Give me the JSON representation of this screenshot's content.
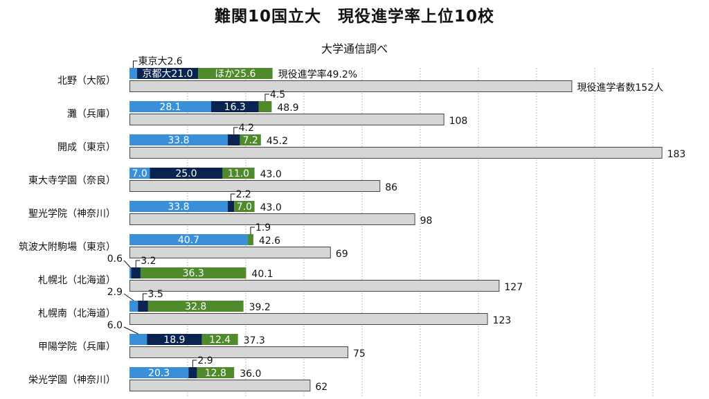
{
  "title": "難関10国立大　現役進学率上位10校",
  "subtitle": "大学通信調べ",
  "colors": {
    "tokyo": "#3a8fd9",
    "kyoto": "#0a2452",
    "other": "#4f8a2c",
    "total": "#d6d6d6",
    "total_border": "#444444",
    "grid": "#bfbfbf"
  },
  "chart_data": {
    "type": "bar",
    "title": "難関10国立大　現役進学率上位10校",
    "subtitle": "大学通信調べ",
    "categories": [
      "北野（大阪）",
      "灘（兵庫）",
      "開成（東京）",
      "東大寺学園（奈良）",
      "聖光学院（神奈川）",
      "筑波大附駒場（東京）",
      "札幌北（北海道）",
      "札幌南（北海道）",
      "甲陽学院（兵庫）",
      "栄光学園（神奈川）"
    ],
    "series": [
      {
        "name": "東京大",
        "values": [
          2.6,
          28.1,
          33.8,
          7.0,
          33.8,
          40.7,
          0.6,
          2.9,
          6.0,
          20.3
        ],
        "labels": [
          "2.6",
          "28.1",
          "33.8",
          "7.0",
          "33.8",
          "40.7",
          "0.6",
          "2.9",
          "6.0",
          "20.3"
        ]
      },
      {
        "name": "京都大",
        "values": [
          21.0,
          16.3,
          4.2,
          25.0,
          2.2,
          0,
          3.2,
          3.5,
          18.9,
          2.9
        ],
        "labels": [
          "21.0",
          "16.3",
          "4.2",
          "25.0",
          "2.2",
          "",
          "3.2",
          "3.5",
          "18.9",
          "2.9"
        ]
      },
      {
        "name": "ほか",
        "values": [
          25.6,
          4.5,
          7.2,
          11.0,
          7.0,
          1.9,
          36.3,
          32.8,
          12.4,
          12.8
        ],
        "labels": [
          "25.6",
          "4.5",
          "7.2",
          "11.0",
          "7.0",
          "1.9",
          "36.3",
          "32.8",
          "12.4",
          "12.8"
        ]
      }
    ],
    "rate_totals": [
      "49.2",
      "48.9",
      "45.2",
      "43.0",
      "43.0",
      "42.6",
      "40.1",
      "39.2",
      "37.3",
      "36.0"
    ],
    "rate_prefix": "現役進学率",
    "rate_suffix": "%",
    "students": {
      "values": [
        152,
        108,
        183,
        86,
        98,
        69,
        127,
        123,
        75,
        62
      ],
      "prefix": "現役進学者数",
      "suffix": "人"
    },
    "xlim": [
      0,
      200
    ],
    "grid": true,
    "grid_step": 20
  }
}
